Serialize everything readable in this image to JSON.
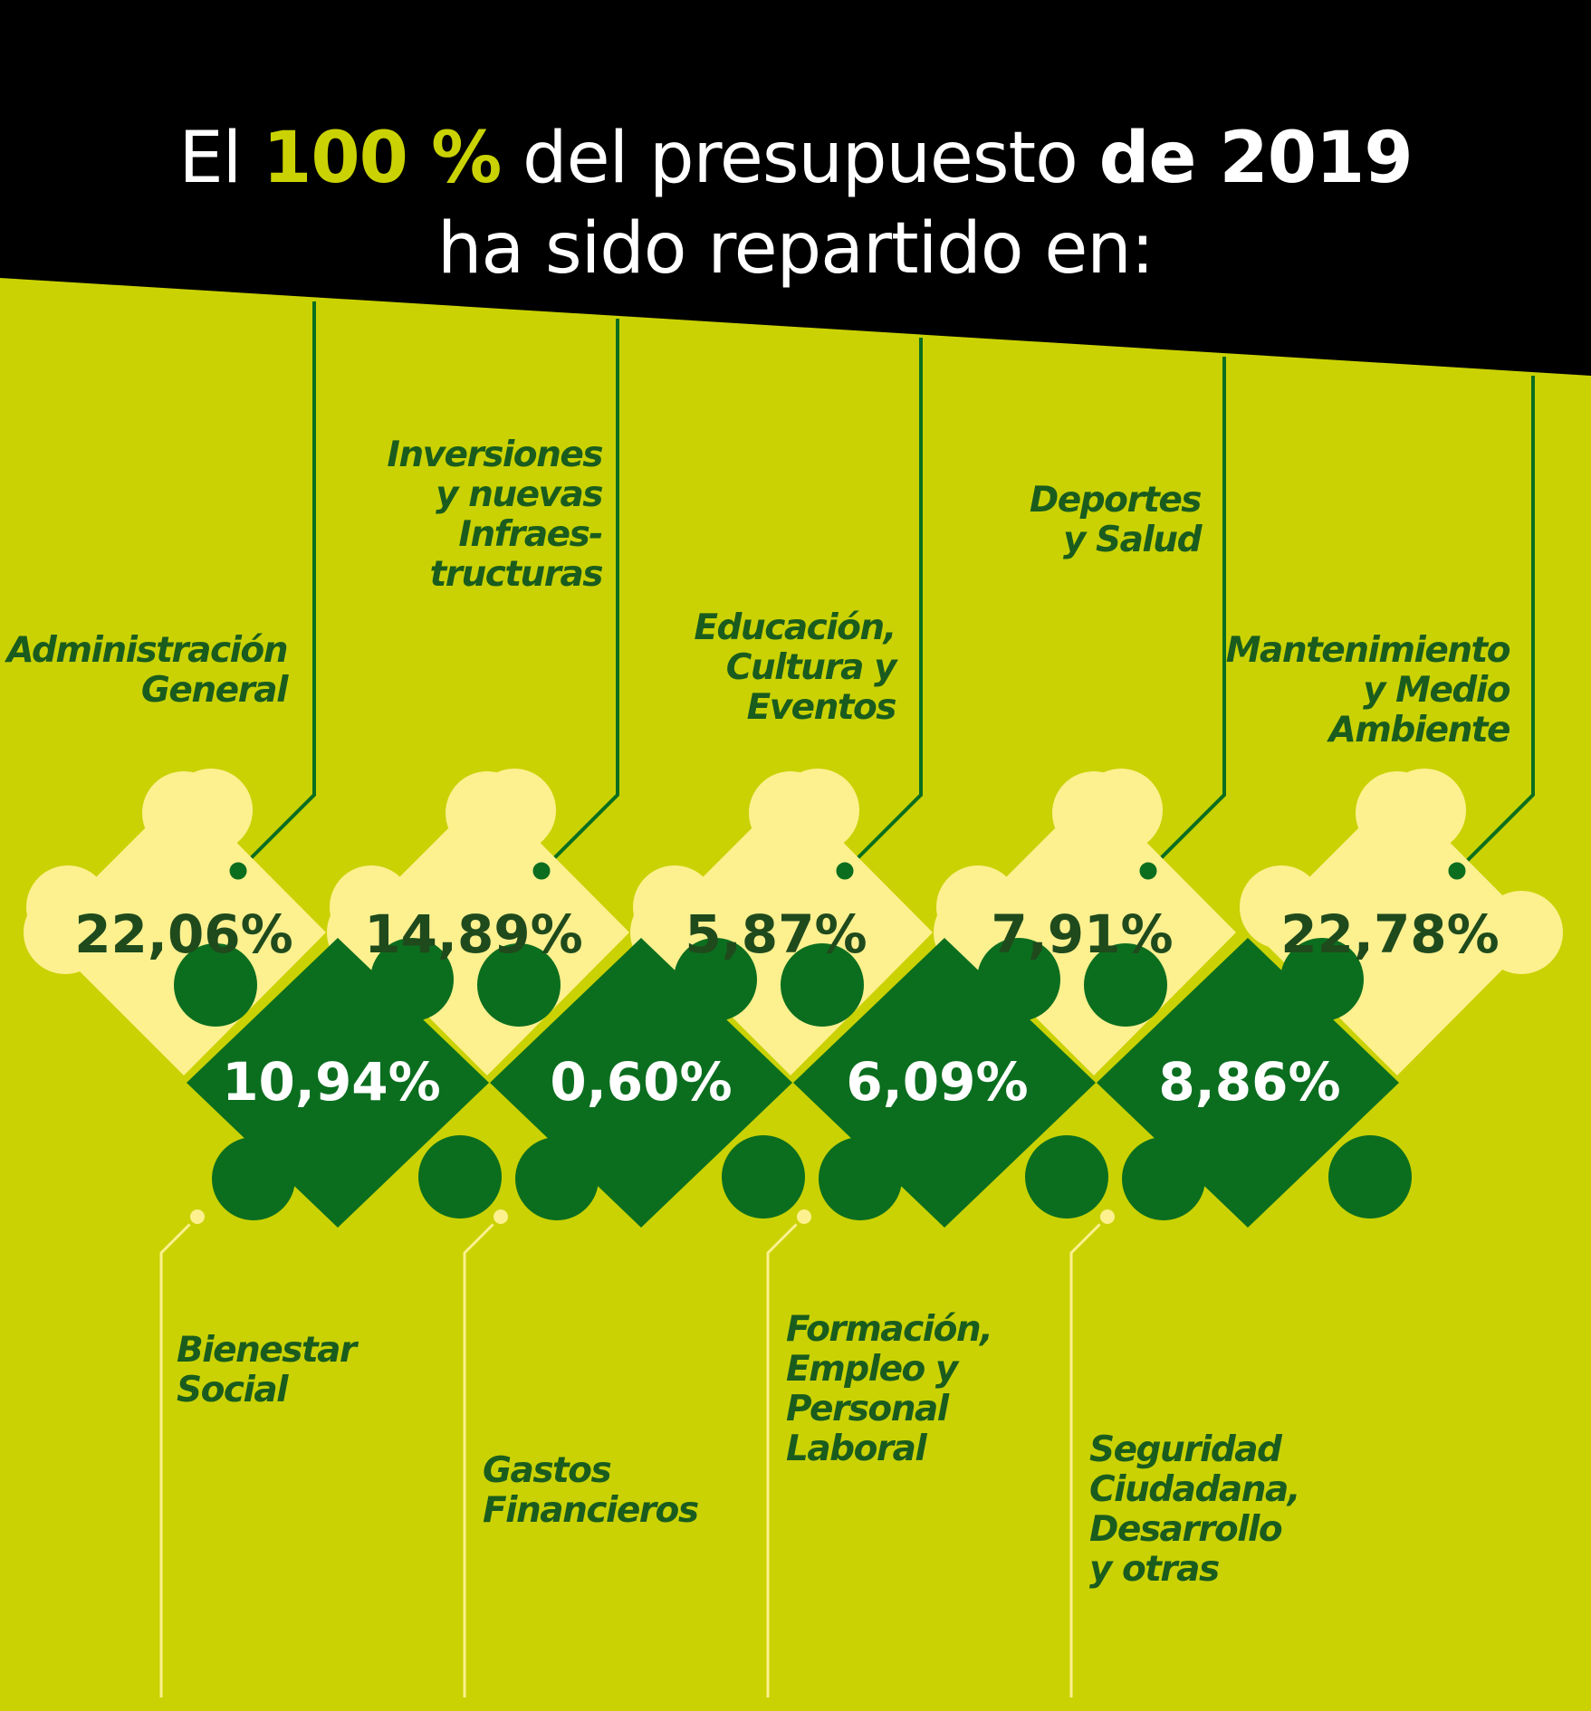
{
  "title": {
    "part1": "El ",
    "highlight": "100 %",
    "part2": " del presupuesto ",
    "bold": "de 2019",
    "line2": "ha sido repartido en:"
  },
  "colors": {
    "background": "#cad203",
    "header": "#000000",
    "dark_green": "#0b6e1f",
    "pale_yellow": "#fdf08f",
    "label_green": "#1a5c1e",
    "highlight": "#cad203"
  },
  "items": {
    "administracion": {
      "label": "Administración\nGeneral",
      "value": "22,06%"
    },
    "inversiones": {
      "label": "Inversiones\ny nuevas\nInfraes-\ntructuras",
      "value": "14,89%"
    },
    "educacion": {
      "label": "Educación,\nCultura y\nEventos",
      "value": "5,87%"
    },
    "deportes": {
      "label": "Deportes\ny Salud",
      "value": "7,91%"
    },
    "mantenimiento": {
      "label": "Mantenimiento\ny Medio\nAmbiente",
      "value": "22,78%"
    },
    "bienestar": {
      "label": "Bienestar\nSocial",
      "value": "10,94%"
    },
    "gastos": {
      "label": "Gastos\nFinancieros",
      "value": "0,60%"
    },
    "formacion": {
      "label": "Formación,\nEmpleo y\nPersonal\nLaboral",
      "value": "6,09%"
    },
    "seguridad": {
      "label": "Seguridad\nCiudadana,\nDesarrollo\ny otras",
      "value": "8,86%"
    }
  }
}
